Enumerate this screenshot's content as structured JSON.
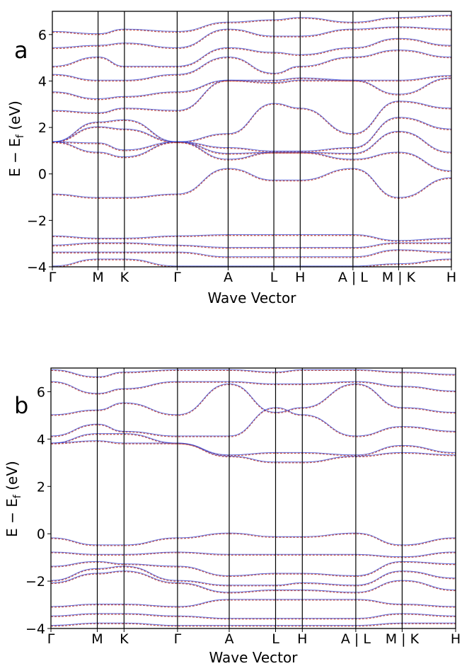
{
  "chart_data": [
    {
      "type": "line",
      "panel_label": "a",
      "xlabel": "Wave Vector",
      "ylabel_main": "E − E",
      "ylabel_sub": "f",
      "ylabel_unit": " (eV)",
      "ylim": [
        -4,
        7
      ],
      "yticks": [
        -4,
        -2,
        0,
        2,
        4,
        6
      ],
      "kpath": [
        {
          "label": "Γ",
          "x": 0.0
        },
        {
          "label": "M",
          "x": 0.156
        },
        {
          "label": "K",
          "x": 0.246
        },
        {
          "label": "Γ",
          "x": 0.426
        },
        {
          "label": "A",
          "x": 0.6
        },
        {
          "label": "L",
          "x": 0.756
        },
        {
          "label": "H",
          "x": 0.846
        },
        {
          "label": "A | L",
          "x": 1.026
        },
        {
          "label": "M | K",
          "x": 1.182
        },
        {
          "label": "H",
          "x": 1.362
        }
      ],
      "series": [
        {
          "color": "#c0392b",
          "dash": "3,2",
          "offset": 0.0,
          "bands": [
            [
              -4.0,
              -3.7,
              -3.7,
              -4.0,
              -4.0,
              -4.0,
              -4.0,
              -4.0,
              -3.9,
              -3.7
            ],
            [
              -3.4,
              -3.4,
              -3.4,
              -3.4,
              -3.6,
              -3.6,
              -3.6,
              -3.6,
              -3.3,
              -3.4
            ],
            [
              -3.1,
              -3.0,
              -3.0,
              -3.1,
              -3.2,
              -3.2,
              -3.2,
              -3.2,
              -3.0,
              -3.0
            ],
            [
              -2.7,
              -2.8,
              -2.8,
              -2.7,
              -2.65,
              -2.65,
              -2.65,
              -2.65,
              -2.9,
              -2.8
            ],
            [
              -0.9,
              -1.05,
              -1.05,
              -0.9,
              0.2,
              -0.3,
              -0.3,
              0.2,
              -1.05,
              -0.2
            ],
            [
              1.35,
              0.9,
              0.7,
              1.35,
              0.6,
              0.9,
              0.9,
              0.6,
              0.9,
              0.1
            ],
            [
              1.35,
              1.3,
              1.0,
              1.35,
              0.85,
              0.9,
              0.9,
              0.85,
              1.8,
              0.9
            ],
            [
              1.35,
              2.0,
              1.9,
              1.35,
              1.1,
              0.95,
              0.95,
              1.1,
              2.4,
              1.9
            ],
            [
              1.35,
              2.2,
              2.3,
              1.35,
              1.7,
              3.0,
              2.8,
              1.7,
              3.1,
              2.8
            ],
            [
              2.7,
              2.6,
              2.8,
              2.7,
              4.0,
              3.9,
              4.0,
              4.0,
              3.4,
              4.1
            ],
            [
              3.5,
              3.2,
              3.3,
              3.5,
              4.0,
              4.0,
              4.1,
              4.0,
              4.0,
              4.2
            ],
            [
              4.25,
              4.0,
              4.0,
              4.25,
              5.0,
              4.3,
              4.6,
              5.0,
              5.3,
              5.0
            ],
            [
              4.6,
              5.0,
              4.6,
              4.6,
              5.4,
              5.2,
              5.1,
              5.4,
              5.8,
              5.5
            ],
            [
              5.4,
              5.5,
              5.6,
              5.4,
              6.2,
              5.9,
              5.9,
              6.2,
              6.3,
              6.2
            ],
            [
              6.1,
              6.0,
              6.2,
              6.1,
              6.5,
              6.6,
              6.7,
              6.5,
              6.7,
              6.8
            ]
          ]
        },
        {
          "color": "#2f3ed0",
          "dash": "",
          "offset": 0.035,
          "bands": [
            [
              -4.0,
              -3.7,
              -3.7,
              -4.0,
              -4.0,
              -4.0,
              -4.0,
              -4.0,
              -3.9,
              -3.7
            ],
            [
              -3.4,
              -3.4,
              -3.4,
              -3.4,
              -3.6,
              -3.6,
              -3.6,
              -3.6,
              -3.3,
              -3.4
            ],
            [
              -3.1,
              -3.0,
              -3.0,
              -3.1,
              -3.2,
              -3.2,
              -3.2,
              -3.2,
              -3.0,
              -3.0
            ],
            [
              -2.7,
              -2.8,
              -2.8,
              -2.7,
              -2.65,
              -2.65,
              -2.65,
              -2.65,
              -2.9,
              -2.8
            ],
            [
              -0.9,
              -1.05,
              -1.05,
              -0.9,
              0.2,
              -0.3,
              -0.3,
              0.2,
              -1.05,
              -0.2
            ],
            [
              1.35,
              0.9,
              0.7,
              1.35,
              0.6,
              0.9,
              0.9,
              0.6,
              0.9,
              0.1
            ],
            [
              1.35,
              1.3,
              1.0,
              1.35,
              0.85,
              0.9,
              0.9,
              0.85,
              1.8,
              0.9
            ],
            [
              1.35,
              2.0,
              1.9,
              1.35,
              1.1,
              0.95,
              0.95,
              1.1,
              2.4,
              1.9
            ],
            [
              1.35,
              2.2,
              2.3,
              1.35,
              1.7,
              3.0,
              2.8,
              1.7,
              3.1,
              2.8
            ],
            [
              2.7,
              2.6,
              2.8,
              2.7,
              4.0,
              3.9,
              4.0,
              4.0,
              3.4,
              4.1
            ],
            [
              3.5,
              3.2,
              3.3,
              3.5,
              4.0,
              4.0,
              4.1,
              4.0,
              4.0,
              4.2
            ],
            [
              4.25,
              4.0,
              4.0,
              4.25,
              5.0,
              4.3,
              4.6,
              5.0,
              5.3,
              5.0
            ],
            [
              4.6,
              5.0,
              4.6,
              4.6,
              5.4,
              5.2,
              5.1,
              5.4,
              5.8,
              5.5
            ],
            [
              5.4,
              5.5,
              5.6,
              5.4,
              6.2,
              5.9,
              5.9,
              6.2,
              6.3,
              6.2
            ],
            [
              6.1,
              6.0,
              6.2,
              6.1,
              6.5,
              6.6,
              6.7,
              6.5,
              6.7,
              6.8
            ]
          ]
        }
      ]
    },
    {
      "type": "line",
      "panel_label": "b",
      "xlabel": "Wave Vector",
      "ylabel_main": "E − E",
      "ylabel_sub": "f",
      "ylabel_unit": " (eV)",
      "ylim": [
        -4,
        7
      ],
      "yticks": [
        -4,
        -2,
        0,
        2,
        4,
        6
      ],
      "kpath": [
        {
          "label": "Γ",
          "x": 0.0
        },
        {
          "label": "M",
          "x": 0.156
        },
        {
          "label": "K",
          "x": 0.246
        },
        {
          "label": "Γ",
          "x": 0.426
        },
        {
          "label": "A",
          "x": 0.6
        },
        {
          "label": "L",
          "x": 0.756
        },
        {
          "label": "H",
          "x": 0.846
        },
        {
          "label": "A | L",
          "x": 1.026
        },
        {
          "label": "M | K",
          "x": 1.182
        },
        {
          "label": "H",
          "x": 1.362
        }
      ],
      "series": [
        {
          "color": "#c0392b",
          "dash": "3,2",
          "offset": 0.0,
          "bands": [
            [
              -3.9,
              -3.8,
              -3.8,
              -3.9,
              -3.9,
              -3.9,
              -3.9,
              -3.9,
              -3.8,
              -3.8
            ],
            [
              -3.5,
              -3.4,
              -3.4,
              -3.5,
              -3.6,
              -3.6,
              -3.6,
              -3.6,
              -3.4,
              -3.5
            ],
            [
              -3.1,
              -3.0,
              -3.0,
              -3.1,
              -2.8,
              -2.8,
              -2.8,
              -2.8,
              -3.0,
              -3.1
            ],
            [
              -2.1,
              -1.7,
              -1.6,
              -2.1,
              -2.5,
              -2.4,
              -2.4,
              -2.5,
              -2.0,
              -2.4
            ],
            [
              -2.0,
              -1.5,
              -1.4,
              -2.0,
              -2.2,
              -2.2,
              -2.1,
              -2.2,
              -1.6,
              -1.9
            ],
            [
              -1.4,
              -1.2,
              -1.3,
              -1.4,
              -1.8,
              -1.7,
              -1.7,
              -1.8,
              -1.2,
              -1.3
            ],
            [
              -0.8,
              -0.9,
              -0.9,
              -0.8,
              -0.9,
              -0.9,
              -0.9,
              -0.9,
              -1.0,
              -0.8
            ],
            [
              -0.2,
              -0.5,
              -0.5,
              -0.2,
              0.0,
              -0.15,
              -0.15,
              0.0,
              -0.5,
              -0.2
            ],
            [
              3.8,
              3.9,
              3.8,
              3.8,
              3.25,
              3.0,
              3.0,
              3.25,
              3.4,
              3.3
            ],
            [
              3.8,
              4.2,
              4.2,
              3.8,
              3.3,
              3.4,
              3.4,
              3.3,
              3.7,
              3.4
            ],
            [
              4.1,
              4.6,
              4.3,
              4.1,
              4.1,
              5.3,
              5.0,
              4.1,
              4.5,
              4.3
            ],
            [
              5.0,
              5.2,
              5.5,
              5.0,
              6.3,
              5.1,
              5.3,
              6.3,
              5.3,
              5.1
            ],
            [
              6.4,
              5.9,
              6.1,
              6.4,
              6.4,
              6.3,
              6.3,
              6.4,
              6.2,
              6.0
            ],
            [
              6.9,
              6.6,
              6.8,
              6.9,
              6.9,
              6.8,
              6.9,
              6.9,
              6.8,
              6.7
            ]
          ]
        },
        {
          "color": "#2f3ed0",
          "dash": "",
          "offset": 0.03,
          "bands": [
            [
              -3.9,
              -3.8,
              -3.8,
              -3.9,
              -3.9,
              -3.9,
              -3.9,
              -3.9,
              -3.8,
              -3.8
            ],
            [
              -3.5,
              -3.4,
              -3.4,
              -3.5,
              -3.6,
              -3.6,
              -3.6,
              -3.6,
              -3.4,
              -3.5
            ],
            [
              -3.1,
              -3.0,
              -3.0,
              -3.1,
              -2.8,
              -2.8,
              -2.8,
              -2.8,
              -3.0,
              -3.1
            ],
            [
              -2.1,
              -1.7,
              -1.6,
              -2.1,
              -2.5,
              -2.4,
              -2.4,
              -2.5,
              -2.0,
              -2.4
            ],
            [
              -2.0,
              -1.5,
              -1.4,
              -2.0,
              -2.2,
              -2.2,
              -2.1,
              -2.2,
              -1.6,
              -1.9
            ],
            [
              -1.4,
              -1.2,
              -1.3,
              -1.4,
              -1.8,
              -1.7,
              -1.7,
              -1.8,
              -1.2,
              -1.3
            ],
            [
              -0.8,
              -0.9,
              -0.9,
              -0.8,
              -0.9,
              -0.9,
              -0.9,
              -0.9,
              -1.0,
              -0.8
            ],
            [
              -0.2,
              -0.5,
              -0.5,
              -0.2,
              0.0,
              -0.15,
              -0.15,
              0.0,
              -0.5,
              -0.2
            ],
            [
              3.8,
              3.9,
              3.8,
              3.8,
              3.25,
              3.0,
              3.0,
              3.25,
              3.4,
              3.3
            ],
            [
              3.8,
              4.2,
              4.2,
              3.8,
              3.3,
              3.4,
              3.4,
              3.3,
              3.7,
              3.4
            ],
            [
              4.1,
              4.6,
              4.3,
              4.1,
              4.1,
              5.3,
              5.0,
              4.1,
              4.5,
              4.3
            ],
            [
              5.0,
              5.2,
              5.5,
              5.0,
              6.3,
              5.1,
              5.3,
              6.3,
              5.3,
              5.1
            ],
            [
              6.4,
              5.9,
              6.1,
              6.4,
              6.4,
              6.3,
              6.3,
              6.4,
              6.2,
              6.0
            ],
            [
              6.9,
              6.6,
              6.8,
              6.9,
              6.9,
              6.8,
              6.9,
              6.9,
              6.8,
              6.7
            ]
          ]
        }
      ]
    }
  ]
}
